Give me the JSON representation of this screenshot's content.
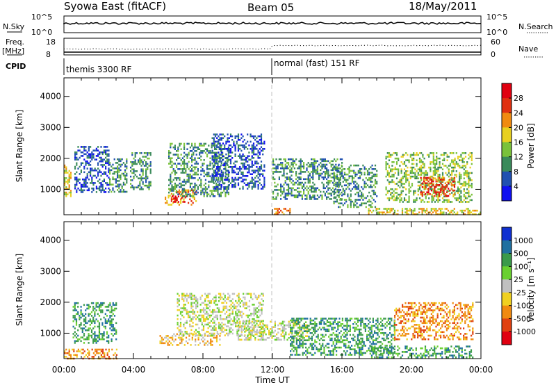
{
  "header": {
    "station": "Syowa East (fitACF)",
    "beam": "Beam 05",
    "date": "18/May/2011"
  },
  "status_panels": {
    "nsky_label": "N.Sky",
    "nsky_ticks": [
      "10^5",
      "10^0"
    ],
    "nsearch_label": "N.Search",
    "nsearch_ticks": [
      "10^5",
      "10^0"
    ],
    "freq_label_line1": "Freq.",
    "freq_label_line2": "[MHz]",
    "freq_ticks": [
      "18",
      "8"
    ],
    "nave_label": "Nave",
    "nave_ticks": [
      "60",
      "0"
    ],
    "cpid_label": "CPID",
    "cpid_modes": [
      {
        "label": "themis 3300 RF",
        "start_hour": 0
      },
      {
        "label": "normal (fast) 151 RF",
        "start_hour": 12
      }
    ]
  },
  "chart_data": [
    {
      "type": "heatmap",
      "name": "Power",
      "ylabel": "Slant Range [km]",
      "xlabel": "Time UT",
      "x_ticks": [
        "00:00",
        "04:00",
        "08:00",
        "12:00",
        "16:00",
        "20:00",
        "00:00"
      ],
      "x_range_hours": [
        0,
        24
      ],
      "y_ticks": [
        1000,
        2000,
        3000,
        4000
      ],
      "ylim": [
        180,
        4600
      ],
      "colorbar": {
        "label": "Power [dB]",
        "ticks": [
          "4",
          "8",
          "12",
          "16",
          "20",
          "24",
          "28"
        ],
        "colors": [
          "#1010f0",
          "#2050b0",
          "#3a8a5a",
          "#7ac23a",
          "#e8d020",
          "#f08a10",
          "#e03010",
          "#e00010"
        ]
      },
      "regions": [
        {
          "t0": 0.0,
          "t1": 0.4,
          "r0": 700,
          "r1": 1800,
          "level": 4
        },
        {
          "t0": 0.6,
          "t1": 2.6,
          "r0": 900,
          "r1": 2400,
          "level": 1
        },
        {
          "t0": 2.6,
          "t1": 3.6,
          "r0": 900,
          "r1": 2000,
          "level": 2
        },
        {
          "t0": 3.8,
          "t1": 5.0,
          "r0": 1000,
          "r1": 2200,
          "level": 2
        },
        {
          "t0": 5.8,
          "t1": 7.6,
          "r0": 500,
          "r1": 1000,
          "level": 5
        },
        {
          "t0": 6.2,
          "t1": 7.0,
          "r0": 600,
          "r1": 800,
          "level": 7
        },
        {
          "t0": 6.0,
          "t1": 9.5,
          "r0": 800,
          "r1": 2500,
          "level": 2
        },
        {
          "t0": 8.5,
          "t1": 11.5,
          "r0": 1000,
          "r1": 2800,
          "level": 1
        },
        {
          "t0": 12.0,
          "t1": 16.0,
          "r0": 700,
          "r1": 2000,
          "level": 2
        },
        {
          "t0": 12.0,
          "t1": 13.0,
          "r0": 180,
          "r1": 400,
          "level": 5
        },
        {
          "t0": 15.5,
          "t1": 18.0,
          "r0": 400,
          "r1": 1800,
          "level": 2
        },
        {
          "t0": 17.5,
          "t1": 24.0,
          "r0": 180,
          "r1": 400,
          "level": 4
        },
        {
          "t0": 18.5,
          "t1": 23.5,
          "r0": 600,
          "r1": 2200,
          "level": 3
        },
        {
          "t0": 20.5,
          "t1": 22.5,
          "r0": 800,
          "r1": 1400,
          "level": 6
        }
      ]
    },
    {
      "type": "heatmap",
      "name": "Velocity",
      "ylabel": "Slant Range [km]",
      "xlabel": "Time UT",
      "x_ticks": [
        "00:00",
        "04:00",
        "08:00",
        "12:00",
        "16:00",
        "20:00",
        "00:00"
      ],
      "x_range_hours": [
        0,
        24
      ],
      "y_ticks": [
        1000,
        2000,
        3000,
        4000
      ],
      "ylim": [
        180,
        4600
      ],
      "colorbar": {
        "label": "Velocity [m s⁻¹]",
        "ticks": [
          "1000",
          "500",
          "100",
          "25",
          "-25",
          "-100",
          "-500",
          "-1000"
        ],
        "colors": [
          "#1030d0",
          "#2070a0",
          "#3a9a4a",
          "#6ad030",
          "#c0c0c0",
          "#f0d020",
          "#f08a10",
          "#e04010",
          "#e00010"
        ]
      },
      "regions": [
        {
          "t0": 0.0,
          "t1": 3.0,
          "r0": 180,
          "r1": 500,
          "level": 6
        },
        {
          "t0": 0.5,
          "t1": 3.0,
          "r0": 700,
          "r1": 2000,
          "level": 2
        },
        {
          "t0": 5.5,
          "t1": 9.0,
          "r0": 600,
          "r1": 1000,
          "level": 5
        },
        {
          "t0": 6.5,
          "t1": 11.5,
          "r0": 900,
          "r1": 2300,
          "level": 4
        },
        {
          "t0": 10.0,
          "t1": 14.0,
          "r0": 800,
          "r1": 1400,
          "level": 4
        },
        {
          "t0": 13.0,
          "t1": 19.0,
          "r0": 300,
          "r1": 1500,
          "level": 2
        },
        {
          "t0": 17.5,
          "t1": 23.5,
          "r0": 200,
          "r1": 600,
          "level": 2
        },
        {
          "t0": 19.0,
          "t1": 23.5,
          "r0": 800,
          "r1": 2000,
          "level": 6
        }
      ]
    }
  ]
}
